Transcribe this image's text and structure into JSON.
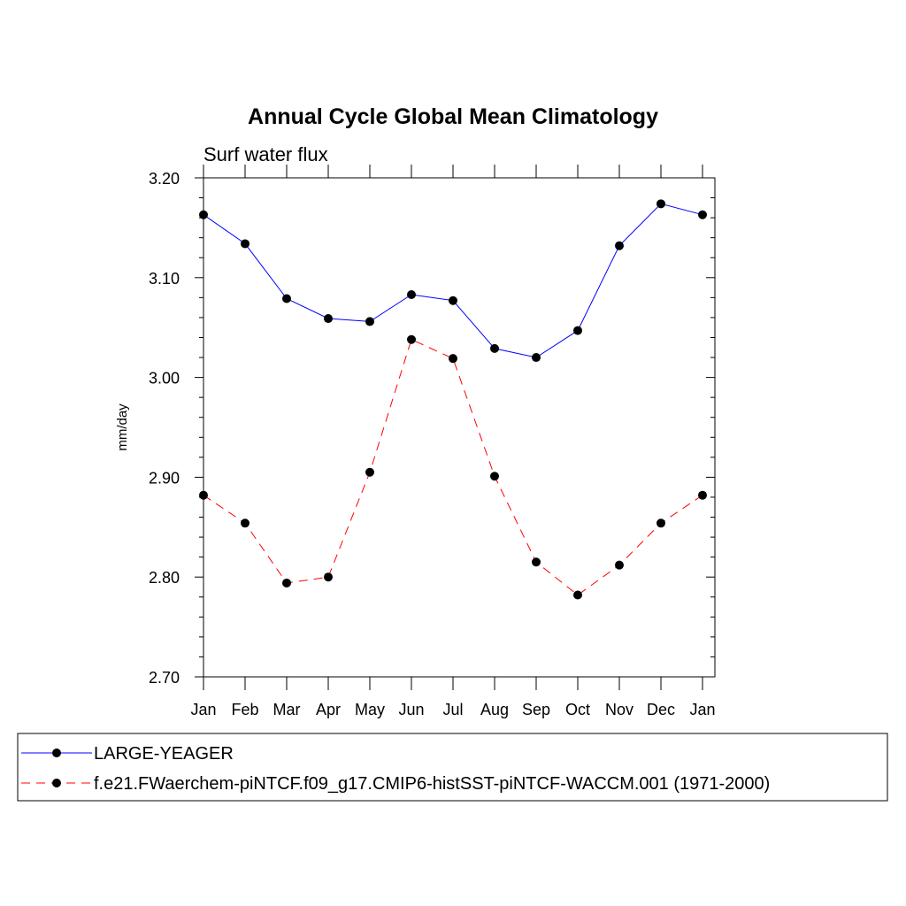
{
  "chart_data": {
    "type": "line",
    "title": "Annual Cycle Global Mean Climatology",
    "subtitle": "Surf water flux",
    "xlabel": "",
    "ylabel": "mm/day",
    "categories": [
      "Jan",
      "Feb",
      "Mar",
      "Apr",
      "May",
      "Jun",
      "Jul",
      "Aug",
      "Sep",
      "Oct",
      "Nov",
      "Dec",
      "Jan"
    ],
    "ylim": [
      2.7,
      3.2
    ],
    "yticks": [
      "2.70",
      "2.80",
      "2.90",
      "3.00",
      "3.10",
      "3.20"
    ],
    "series": [
      {
        "name": "LARGE-YEAGER",
        "color": "#0000ff",
        "dash": "solid",
        "marker": "filled-circle",
        "values": [
          3.163,
          3.134,
          3.079,
          3.059,
          3.056,
          3.083,
          3.077,
          3.029,
          3.02,
          3.047,
          3.132,
          3.174,
          3.163
        ]
      },
      {
        "name": "f.e21.FWaerchem-piNTCF.f09_g17.CMIP6-histSST-piNTCF-WACCM.001 (1971-2000)",
        "color": "#ff0000",
        "dash": "dashed",
        "marker": "filled-circle",
        "values": [
          2.882,
          2.854,
          2.794,
          2.8,
          2.905,
          3.038,
          3.019,
          2.901,
          2.815,
          2.782,
          2.812,
          2.854,
          2.882
        ]
      }
    ],
    "legend_position": "bottom"
  }
}
